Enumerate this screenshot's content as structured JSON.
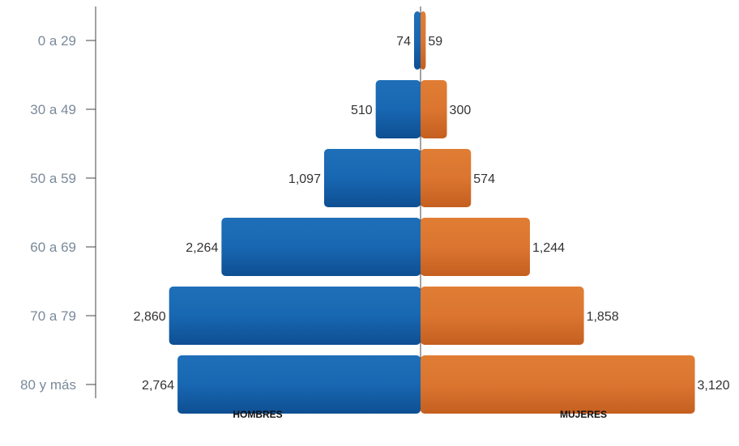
{
  "chart_data": {
    "type": "bar",
    "orientation": "horizontal-population-pyramid",
    "title": "",
    "categories": [
      "0 a 29",
      "30 a 49",
      "50 a 59",
      "60 a 69",
      "70 a 79",
      "80 y más"
    ],
    "series": [
      {
        "name": "HOMBRES",
        "side": "left",
        "color": "#1560a8",
        "values": [
          74,
          510,
          1097,
          2264,
          2860,
          2764
        ],
        "labels": [
          "74",
          "510",
          "1,097",
          "2,264",
          "2,860",
          "2,764"
        ]
      },
      {
        "name": "MUJERES",
        "side": "right",
        "color": "#d8702a",
        "values": [
          59,
          300,
          574,
          1244,
          1858,
          3120
        ],
        "labels": [
          "59",
          "300",
          "574",
          "1,244",
          "1,858",
          "3,120"
        ]
      }
    ],
    "grid": false,
    "legend": "bottom"
  }
}
